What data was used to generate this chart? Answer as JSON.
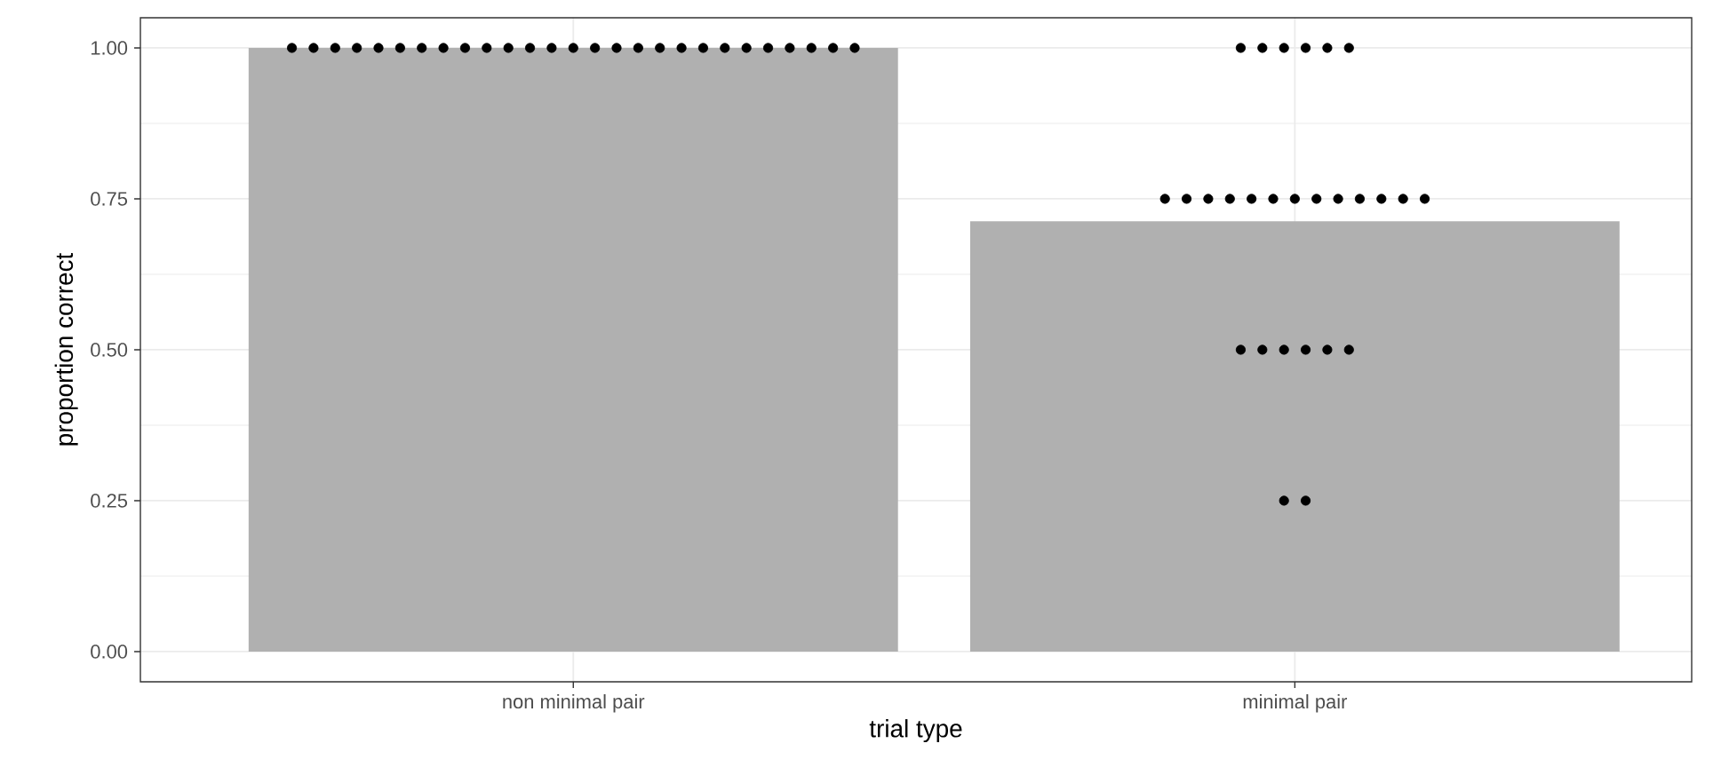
{
  "chart_data": {
    "type": "bar",
    "xlabel": "trial type",
    "ylabel": "proportion correct",
    "categories": [
      "non minimal pair",
      "minimal pair"
    ],
    "series": [
      {
        "color": "#b0b0b0",
        "values": [
          1.0,
          0.713
        ]
      },
      {
        "type": "scatter",
        "color": "#000000",
        "x": [
          "non minimal pair",
          "non minimal pair",
          "non minimal pair",
          "non minimal pair",
          "non minimal pair",
          "non minimal pair",
          "non minimal pair",
          "non minimal pair",
          "non minimal pair",
          "non minimal pair",
          "non minimal pair",
          "non minimal pair",
          "non minimal pair",
          "non minimal pair",
          "non minimal pair",
          "non minimal pair",
          "non minimal pair",
          "non minimal pair",
          "non minimal pair",
          "non minimal pair",
          "non minimal pair",
          "non minimal pair",
          "non minimal pair",
          "non minimal pair",
          "non minimal pair",
          "non minimal pair",
          "non minimal pair",
          "minimal pair",
          "minimal pair",
          "minimal pair",
          "minimal pair",
          "minimal pair",
          "minimal pair",
          "minimal pair",
          "minimal pair",
          "minimal pair",
          "minimal pair",
          "minimal pair",
          "minimal pair",
          "minimal pair",
          "minimal pair",
          "minimal pair",
          "minimal pair",
          "minimal pair",
          "minimal pair",
          "minimal pair",
          "minimal pair",
          "minimal pair",
          "minimal pair",
          "minimal pair",
          "minimal pair",
          "minimal pair",
          "minimal pair",
          "minimal pair"
        ],
        "values": [
          1,
          1,
          1,
          1,
          1,
          1,
          1,
          1,
          1,
          1,
          1,
          1,
          1,
          1,
          1,
          1,
          1,
          1,
          1,
          1,
          1,
          1,
          1,
          1,
          1,
          1,
          1,
          1,
          1,
          1,
          1,
          1,
          1,
          0.75,
          0.75,
          0.75,
          0.75,
          0.75,
          0.75,
          0.75,
          0.75,
          0.75,
          0.75,
          0.75,
          0.75,
          0.75,
          0.5,
          0.5,
          0.5,
          0.5,
          0.5,
          0.5,
          0.25,
          0.25
        ]
      }
    ],
    "ylim": [
      -0.05,
      1.05
    ],
    "yticks": [
      {
        "value": 0,
        "label": "0.00"
      },
      {
        "value": 0.25,
        "label": "0.25"
      },
      {
        "value": 0.5,
        "label": "0.50"
      },
      {
        "value": 0.75,
        "label": "0.75"
      },
      {
        "value": 1,
        "label": "1.00"
      }
    ],
    "grid": true
  }
}
